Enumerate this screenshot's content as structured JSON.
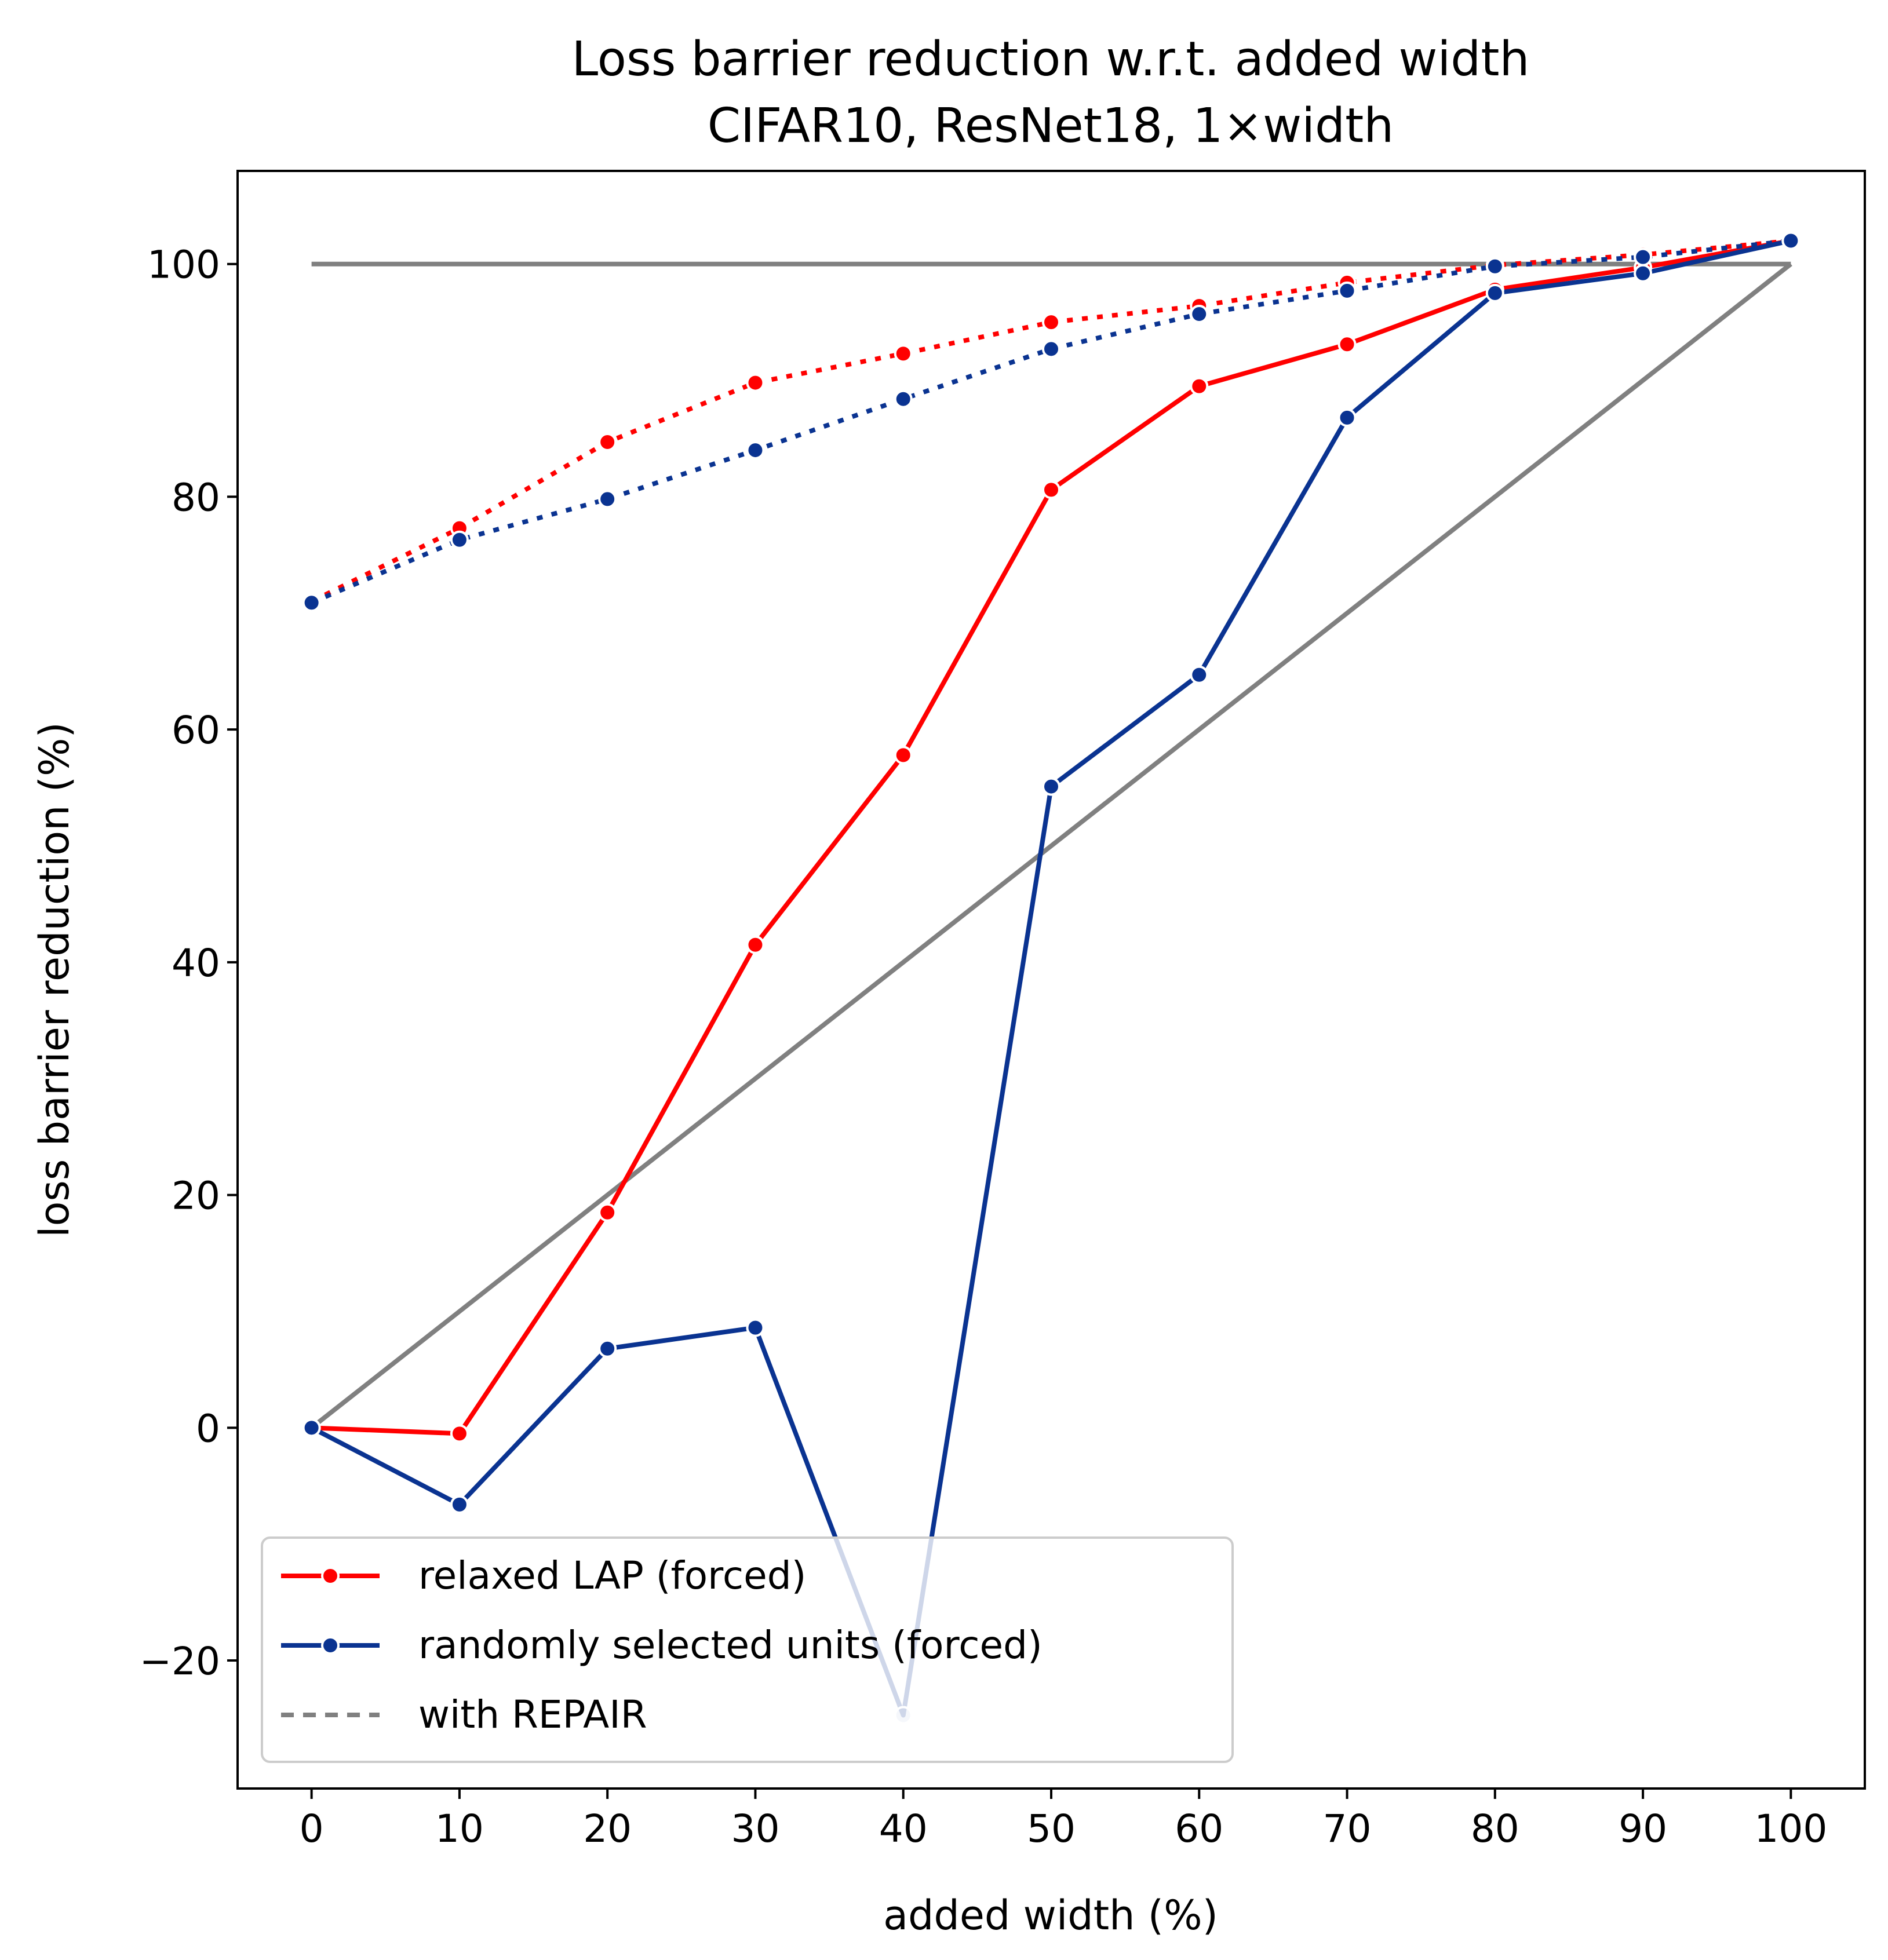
{
  "chart_data": {
    "type": "line",
    "title": "Loss barrier reduction w.r.t. added width",
    "subtitle": "CIFAR10, ResNet18, 1×width",
    "xlabel": "added width (%)",
    "ylabel": "loss barrier reduction (%)",
    "xlim": [
      -5,
      105
    ],
    "ylim": [
      -31,
      108
    ],
    "x_ticks": [
      0,
      10,
      20,
      30,
      40,
      50,
      60,
      70,
      80,
      90,
      100
    ],
    "y_ticks": [
      -20,
      0,
      20,
      40,
      60,
      80,
      100
    ],
    "y_tick_labels": [
      "−20",
      "0",
      "20",
      "40",
      "60",
      "80",
      "100"
    ],
    "grid": false,
    "legend_position": "lower-left",
    "x": [
      0,
      10,
      20,
      30,
      40,
      50,
      60,
      70,
      80,
      90,
      100
    ],
    "series": [
      {
        "name": "relaxed LAP (forced)",
        "color": "#ff0000",
        "style": "solid",
        "values": [
          0,
          -0.5,
          18.5,
          41.5,
          57.8,
          80.6,
          89.5,
          93.1,
          97.8,
          99.7,
          102.0
        ]
      },
      {
        "name": "",
        "color": "#ff0000",
        "style": "dotted",
        "values": [
          71.0,
          77.3,
          84.7,
          89.8,
          92.3,
          95.0,
          96.4,
          98.4,
          99.9,
          100.8,
          102.0
        ]
      },
      {
        "name": "randomly selected units (forced)",
        "color": "#0a3391",
        "style": "solid",
        "values": [
          0,
          -6.6,
          6.8,
          8.6,
          -24.7,
          55.1,
          64.7,
          86.8,
          97.5,
          99.2,
          102.0
        ]
      },
      {
        "name": "",
        "color": "#0a3391",
        "style": "dotted",
        "values": [
          70.9,
          76.3,
          79.8,
          84.0,
          88.4,
          92.7,
          95.7,
          97.7,
          99.8,
          100.6,
          102.0
        ]
      }
    ],
    "reference_lines": [
      {
        "color": "#808080",
        "x": [
          0,
          100
        ],
        "values": [
          100,
          100
        ]
      },
      {
        "color": "#808080",
        "x": [
          0,
          100
        ],
        "values": [
          0,
          100
        ]
      }
    ],
    "legend": [
      {
        "label": "relaxed LAP (forced)",
        "color": "#ff0000",
        "style": "solid-marker"
      },
      {
        "label": "randomly selected units (forced)",
        "color": "#0a3391",
        "style": "solid-marker"
      },
      {
        "label": "with REPAIR",
        "color": "#808080",
        "style": "dashed"
      }
    ]
  }
}
